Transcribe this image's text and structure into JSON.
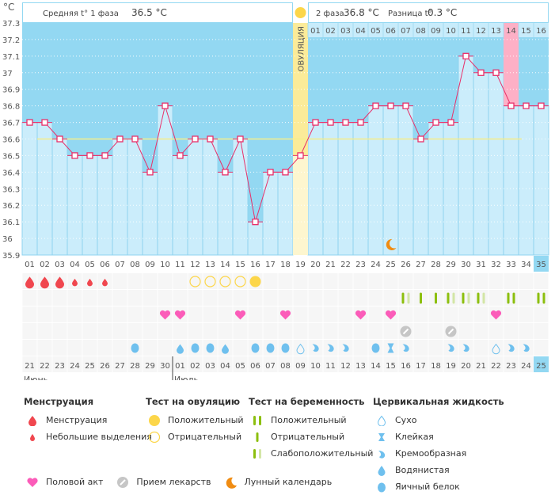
{
  "header": {
    "unit": "°C",
    "phase1_label": "Средняя t° 1 фаза",
    "phase1_value": "36.5 °C",
    "phase2_label": "2 фаза",
    "phase2_value": "36.8 °C",
    "diff_label": "Разница t°",
    "diff_value": "0.3 °C",
    "ovulation_label": "ОВУЛЯЦИЯ"
  },
  "colors": {
    "background_high": "#93d8f2",
    "bar_fill": "#cbedfb",
    "line": "#e8306a",
    "coverline": "#f5ee8a",
    "ovulation": "#fbeb99",
    "highlight_day": "#fdb0c6",
    "weekend_text": "#e8306a",
    "today": "#93d8f2"
  },
  "chart_data": {
    "type": "line",
    "title": "",
    "ylabel": "°C",
    "xlabel": "",
    "ylim": [
      35.9,
      37.3
    ],
    "yticks": [
      "35.9",
      "36",
      "36.1",
      "36.2",
      "36.3",
      "36.4",
      "36.5",
      "36.6",
      "36.7",
      "36.8",
      "36.9",
      "37",
      "37.1",
      "37.2",
      "37.3"
    ],
    "cycle_days": [
      "01",
      "02",
      "03",
      "04",
      "05",
      "06",
      "07",
      "08",
      "09",
      "10",
      "11",
      "12",
      "13",
      "14",
      "15",
      "16",
      "17",
      "18",
      "19",
      "20",
      "21",
      "22",
      "23",
      "24",
      "25",
      "26",
      "27",
      "28",
      "29",
      "30",
      "31",
      "32",
      "33",
      "34",
      "35"
    ],
    "post_ovulation_days": [
      "01",
      "02",
      "03",
      "04",
      "05",
      "06",
      "07",
      "08",
      "09",
      "10",
      "11",
      "12",
      "13",
      "14",
      "15",
      "16"
    ],
    "temperatures": [
      36.7,
      36.7,
      36.6,
      36.5,
      36.5,
      36.5,
      36.6,
      36.6,
      36.4,
      36.8,
      36.5,
      36.6,
      36.6,
      36.4,
      36.6,
      36.1,
      36.4,
      36.4,
      36.5,
      36.7,
      36.7,
      36.7,
      36.7,
      36.8,
      36.8,
      36.8,
      36.6,
      36.7,
      36.7,
      37.1,
      37.0,
      37.0,
      36.8,
      36.8,
      36.8
    ],
    "coverline": 36.6,
    "ovulation_day": 19,
    "highlight_post_day": 14,
    "today_cycle_day": 35,
    "lunar_day": 25,
    "grid": true
  },
  "calendar": {
    "dates": [
      "21",
      "22",
      "23",
      "24",
      "25",
      "26",
      "27",
      "28",
      "29",
      "30",
      "01",
      "02",
      "03",
      "04",
      "05",
      "06",
      "07",
      "08",
      "09",
      "10",
      "11",
      "12",
      "13",
      "14",
      "15",
      "16",
      "17",
      "18",
      "19",
      "20",
      "21",
      "22",
      "23",
      "24",
      "25"
    ],
    "weekend_idx": [
      2,
      3,
      9,
      10,
      16,
      17,
      23,
      24,
      30,
      31
    ],
    "months": [
      {
        "label": "Июнь",
        "start": 0
      },
      {
        "label": "Июль",
        "start": 10
      }
    ],
    "menstruation": [
      "heavy",
      "heavy",
      "heavy",
      "light",
      "light",
      "light",
      "",
      "",
      "",
      "",
      "",
      "",
      "",
      "",
      "",
      "",
      "",
      "",
      "",
      "",
      "",
      "",
      "",
      "",
      "",
      "",
      "",
      "",
      "",
      "",
      "",
      "",
      "",
      "",
      ""
    ],
    "ovulation_test": [
      "",
      "",
      "",
      "",
      "",
      "",
      "",
      "",
      "",
      "",
      "",
      "neg",
      "neg",
      "neg",
      "neg",
      "pos",
      "",
      "",
      "",
      "",
      "",
      "",
      "",
      "",
      "",
      "",
      "",
      "",
      "",
      "",
      "",
      "",
      "",
      "",
      ""
    ],
    "pregnancy_test": [
      "",
      "",
      "",
      "",
      "",
      "",
      "",
      "",
      "",
      "",
      "",
      "",
      "",
      "",
      "",
      "",
      "",
      "",
      "",
      "",
      "",
      "",
      "",
      "",
      "",
      "weak",
      "neg",
      "neg",
      "weak",
      "weak",
      "weak",
      "",
      "pos",
      "",
      "pos"
    ],
    "intercourse": [
      false,
      false,
      false,
      false,
      false,
      false,
      false,
      false,
      false,
      true,
      true,
      false,
      false,
      false,
      true,
      false,
      false,
      true,
      false,
      false,
      false,
      false,
      true,
      false,
      true,
      false,
      false,
      false,
      false,
      false,
      false,
      true,
      false,
      false,
      false
    ],
    "medication": [
      false,
      false,
      false,
      false,
      false,
      false,
      false,
      false,
      false,
      false,
      false,
      false,
      false,
      false,
      false,
      false,
      false,
      false,
      false,
      false,
      false,
      false,
      false,
      false,
      false,
      true,
      false,
      false,
      true,
      false,
      false,
      false,
      false,
      false,
      false
    ],
    "cervical": [
      "",
      "",
      "",
      "",
      "",
      "",
      "",
      "eggwhite",
      "",
      "",
      "watery",
      "eggwhite",
      "eggwhite",
      "watery",
      "",
      "eggwhite",
      "eggwhite",
      "eggwhite",
      "dry",
      "creamy",
      "creamy",
      "creamy",
      "",
      "eggwhite",
      "sticky",
      "creamy",
      "",
      "",
      "creamy",
      "creamy",
      "",
      "dry",
      "creamy",
      "creamy",
      ""
    ]
  },
  "legend": {
    "menstruation": {
      "title": "Менструация",
      "items": [
        "Менструация",
        "Небольшие выделения"
      ]
    },
    "ovulation_test": {
      "title": "Тест на овуляцию",
      "items": [
        "Положительный",
        "Отрицательный"
      ]
    },
    "pregnancy_test": {
      "title": "Тест на беременность",
      "items": [
        "Положительный",
        "Отрицательный",
        "Слабоположительный"
      ]
    },
    "cervical": {
      "title": "Цервикальная жидкость",
      "items": [
        "Сухо",
        "Клейкая",
        "Кремообразная",
        "Водянистая",
        "Яичный белок"
      ]
    },
    "other": [
      "Половой акт",
      "Прием лекарств",
      "Лунный календарь"
    ]
  }
}
